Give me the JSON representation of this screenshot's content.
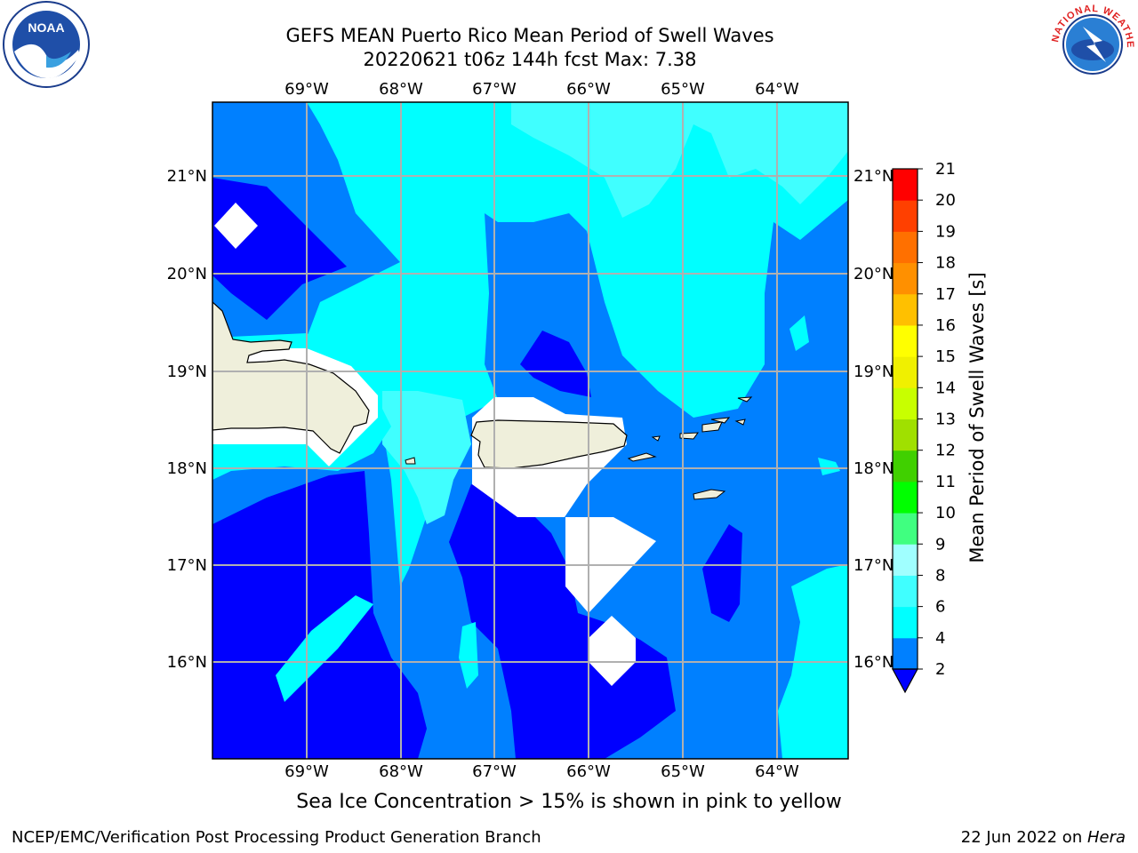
{
  "title_line1": "GEFS MEAN Puerto Rico Mean Period of Swell Waves",
  "title_line2": "20220621 t06z 144h fcst   Max: 7.38",
  "longitude_labels": [
    "69°W",
    "68°W",
    "67°W",
    "66°W",
    "65°W",
    "64°W"
  ],
  "latitude_labels": [
    "21°N",
    "20°N",
    "19°N",
    "18°N",
    "17°N",
    "16°N"
  ],
  "colorbar": {
    "label": "Mean Period of Swell Waves [s]",
    "ticks": [
      "2",
      "4",
      "6",
      "8",
      "9",
      "10",
      "11",
      "12",
      "13",
      "14",
      "15",
      "16",
      "17",
      "18",
      "19",
      "20",
      "21"
    ],
    "colors": [
      "#0000ff",
      "#0080ff",
      "#00ffff",
      "#40ffff",
      "#a0ffff",
      "#40ff80",
      "#00ff00",
      "#40d000",
      "#a0e000",
      "#c8ff00",
      "#f0f000",
      "#ffff00",
      "#ffc000",
      "#ff9000",
      "#ff7000",
      "#ff4000",
      "#ff0000"
    ],
    "under_color": "#0000ff"
  },
  "field_colors": {
    "period_lt_2": "#0000ff",
    "period_2_4": "#0080ff",
    "period_4_6": "#00ffff",
    "period_6_8": "#40ffff",
    "land": "#efefdb",
    "no_data": "#ffffff",
    "grid": "#b0b0b0"
  },
  "note": "Sea Ice Concentration > 15% is shown in pink to yellow",
  "footer_left": "NCEP/EMC/Verification Post Processing Product Generation Branch",
  "footer_right_date": "22 Jun 2022 on ",
  "footer_right_machine": "Hera",
  "logos": {
    "left": "noaa-logo",
    "right": "nws-logo",
    "noaa_text": "NOAA",
    "nws_text": "NATIONAL WEATHER SERVICE"
  }
}
